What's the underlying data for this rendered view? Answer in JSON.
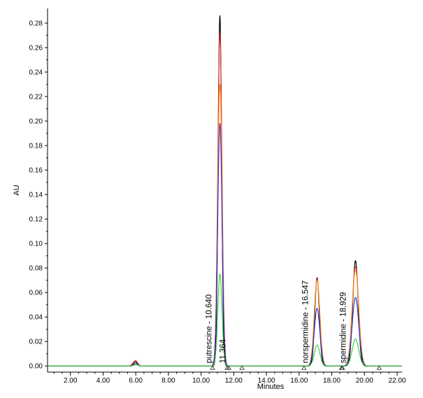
{
  "chart_data": {
    "type": "line",
    "title": "",
    "xlabel": "Minutes",
    "ylabel": "AU",
    "xlim": [
      0.6,
      22.3
    ],
    "ylim": [
      -0.005,
      0.292
    ],
    "x_ticks": [
      2.0,
      4.0,
      6.0,
      8.0,
      10.0,
      12.0,
      14.0,
      16.0,
      18.0,
      20.0,
      22.0
    ],
    "x_tick_labels": [
      "2.00",
      "4.00",
      "6.00",
      "8.00",
      "10.00",
      "12.00",
      "14.00",
      "16.00",
      "18.00",
      "20.00",
      "22.00"
    ],
    "y_ticks": [
      0.0,
      0.02,
      0.04,
      0.06,
      0.08,
      0.1,
      0.12,
      0.14,
      0.16,
      0.18,
      0.2,
      0.22,
      0.24,
      0.26,
      0.28
    ],
    "y_tick_labels": [
      "0.00",
      "0.02",
      "0.04",
      "0.06",
      "0.08",
      "0.10",
      "0.12",
      "0.14",
      "0.16",
      "0.18",
      "0.20",
      "0.22",
      "0.24",
      "0.26",
      "0.28"
    ],
    "grid": false,
    "series": [
      {
        "color": "#000000",
        "heights": [
          0.001,
          0.003,
          0.286,
          0.072,
          0.086
        ],
        "sharp": true
      },
      {
        "color": "#e8302a",
        "heights": [
          0.001,
          0.004,
          0.272,
          0.071,
          0.081
        ]
      },
      {
        "color": "#ff9e1f",
        "heights": [
          0.0,
          0.002,
          0.23,
          0.07,
          0.078
        ]
      },
      {
        "color": "#2a2ae0",
        "heights": [
          0.0,
          0.002,
          0.198,
          0.047,
          0.056
        ]
      },
      {
        "color": "#2fd12f",
        "heights": [
          0.0,
          0.001,
          0.075,
          0.017,
          0.022
        ]
      }
    ],
    "peaks": [
      {
        "rt": 5.85,
        "width": 0.13
      },
      {
        "rt": 6.0,
        "width": 0.12
      },
      {
        "rt": 11.15,
        "width": 0.13
      },
      {
        "rt": 17.1,
        "width": 0.17
      },
      {
        "rt": 19.45,
        "width": 0.2
      }
    ],
    "annotations": [
      {
        "text": "putrescine - 10.640",
        "x": 10.64
      },
      {
        "text": "11.364",
        "x": 11.5
      },
      {
        "text": "norspermidine - 16.547",
        "x": 16.55
      },
      {
        "text": "spermidine - 18.929",
        "x": 18.85
      }
    ],
    "baseline_markers": [
      10.7,
      11.6,
      11.7,
      12.5,
      16.3,
      18.6,
      18.65,
      20.9
    ]
  }
}
